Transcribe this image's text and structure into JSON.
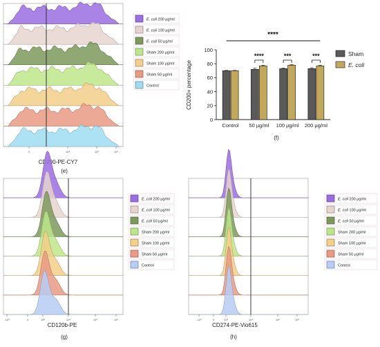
{
  "panel_e": {
    "xlabel": "CD200-PE-CY7",
    "caption": "(e)",
    "tick_labels": [
      "0",
      "10⁴",
      "10⁵",
      "10⁶"
    ],
    "legend": [
      {
        "pre": "E. coli",
        "post": " 200 μg/ml",
        "color": "#9a6de0"
      },
      {
        "pre": "E. coli",
        "post": " 100 μg/ml",
        "color": "#e6d5cf"
      },
      {
        "pre": "E. coli",
        "post": " 50 μg/ml",
        "color": "#7d9a5c"
      },
      {
        "pre": "",
        "post": "Sham 200 μg/ml",
        "color": "#bde68a"
      },
      {
        "pre": "",
        "post": "Sham 100 μg/ml",
        "color": "#f2cf8a"
      },
      {
        "pre": "",
        "post": "Sham 50 μg/ml",
        "color": "#e99a82"
      },
      {
        "pre": "",
        "post": "Control",
        "color": "#9fdcf2"
      }
    ]
  },
  "panel_f": {
    "caption": "(f)",
    "significance_top": "****",
    "group_stars": [
      "****",
      "***",
      "***"
    ],
    "legend": [
      {
        "label": "Sham",
        "color": "#5a5a5a",
        "italic": false
      },
      {
        "label": "E. coli",
        "color": "#c2a85a",
        "italic": true
      }
    ]
  },
  "panel_g": {
    "xlabel": "CD120b-PE",
    "caption": "(g)",
    "tick_labels": [
      "-10³",
      "0",
      "10³",
      "10⁴",
      "10⁵",
      "10⁶"
    ],
    "legend": [
      {
        "pre": "E. coli",
        "post": " 200 μg/ml",
        "color": "#9a6de0"
      },
      {
        "pre": "E. coli",
        "post": " 100 μg/ml",
        "color": "#e6d5cf"
      },
      {
        "pre": "E. coli",
        "post": " 50 μg/ml",
        "color": "#7d9a5c"
      },
      {
        "pre": "",
        "post": "Sham 200 μg/ml",
        "color": "#bde68a"
      },
      {
        "pre": "",
        "post": "Sham 100 μg/ml",
        "color": "#f2cf8a"
      },
      {
        "pre": "",
        "post": "Sham 50 μg/ml",
        "color": "#e99a82"
      },
      {
        "pre": "",
        "post": "Control",
        "color": "#b7cdf5"
      }
    ]
  },
  "panel_h": {
    "xlabel": "CD274-PE-Vio615",
    "caption": "(h)",
    "tick_labels": [
      "-10³",
      "0",
      "10³",
      "10⁴",
      "10⁵",
      "10⁶"
    ],
    "legend": [
      {
        "pre": "E. coli",
        "post": " 200 μg/ml",
        "color": "#9a6de0"
      },
      {
        "pre": "E. coli",
        "post": " 100 μg/ml",
        "color": "#e6d5cf"
      },
      {
        "pre": "E. coli",
        "post": " 50 μg/ml",
        "color": "#7d9a5c"
      },
      {
        "pre": "",
        "post": "Sham 200 μg/ml",
        "color": "#bde68a"
      },
      {
        "pre": "",
        "post": "Sham 100 μg/ml",
        "color": "#f2cf8a"
      },
      {
        "pre": "",
        "post": "Sham 50 μg/ml",
        "color": "#e99a82"
      },
      {
        "pre": "",
        "post": "Control",
        "color": "#b7cdf5"
      }
    ]
  },
  "chart_data": [
    {
      "type": "bar",
      "categories": [
        "Control",
        "50 μg/ml",
        "100 μg/ml",
        "200 μg/ml"
      ],
      "series": [
        {
          "name": "Sham",
          "values": [
            70,
            72,
            73,
            73
          ],
          "errors": [
            0.5,
            1.5,
            0.8,
            1.2
          ],
          "color": "#5a5a5a"
        },
        {
          "name": "E. coli",
          "values": [
            70,
            77,
            78,
            77
          ],
          "errors": [
            0.5,
            0.8,
            0.8,
            0.8
          ],
          "color": "#c2a85a"
        }
      ],
      "xlabel": "",
      "ylabel": "CD200+ percentage",
      "ylim": [
        0,
        100
      ],
      "yticks": [
        0,
        20,
        40,
        60,
        80,
        100
      ],
      "legend_position": "right"
    }
  ]
}
